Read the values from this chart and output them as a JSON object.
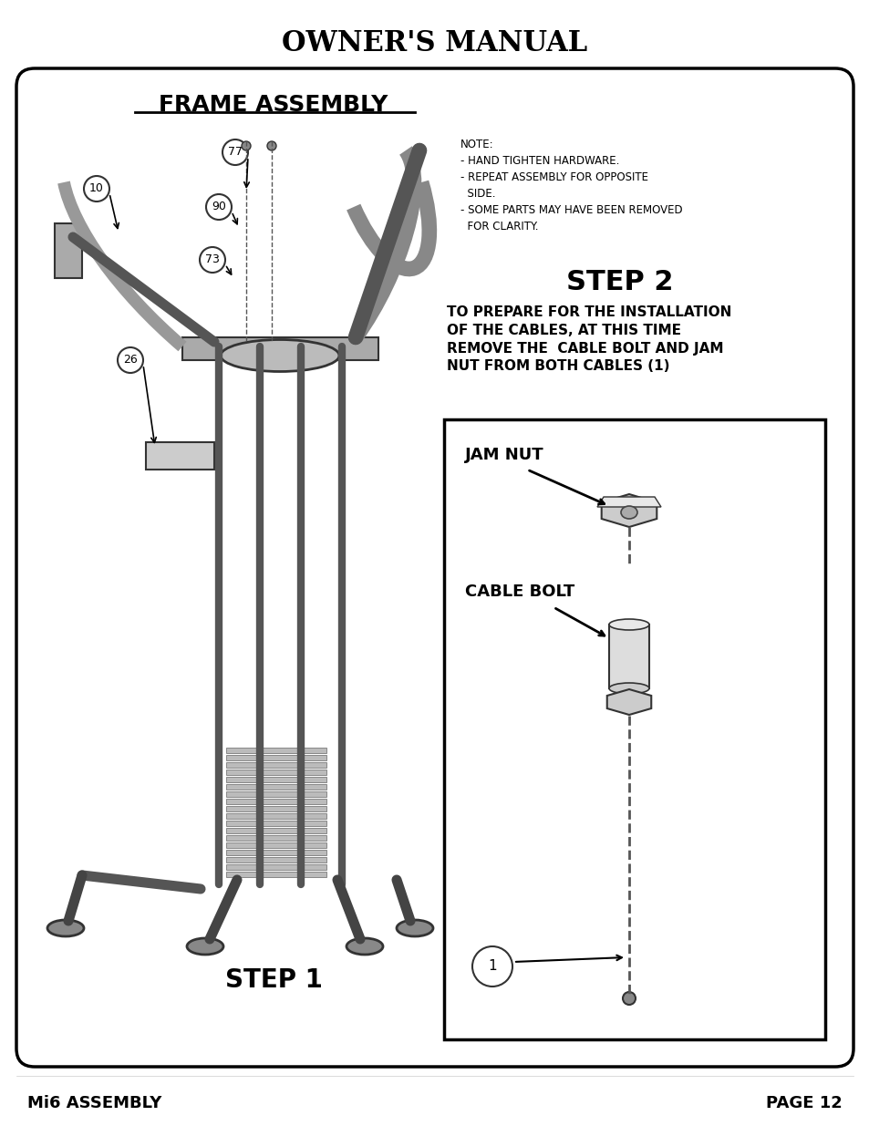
{
  "title": "OWNER'S MANUAL",
  "section_title": "FRAME ASSEMBLY",
  "step2_title": "STEP 2",
  "step2_text": "TO PREPARE FOR THE INSTALLATION\nOF THE CABLES, AT THIS TIME\nREMOVE THE  CABLE BOLT AND JAM\nNUT FROM BOTH CABLES (1)",
  "step1_label": "STEP 1",
  "jam_nut_label": "JAM NUT",
  "cable_bolt_label": "CABLE BOLT",
  "note_text": "NOTE:\n- HAND TIGHTEN HARDWARE.\n- REPEAT ASSEMBLY FOR OPPOSITE\n  SIDE.\n- SOME PARTS MAY HAVE BEEN REMOVED\n  FOR CLARITY.",
  "footer_left": "Mi6 ASSEMBLY",
  "footer_right": "PAGE 12",
  "part_numbers": [
    "77",
    "10",
    "90",
    "73",
    "26",
    "1"
  ],
  "bg_color": "#ffffff",
  "text_color": "#000000",
  "border_color": "#000000"
}
